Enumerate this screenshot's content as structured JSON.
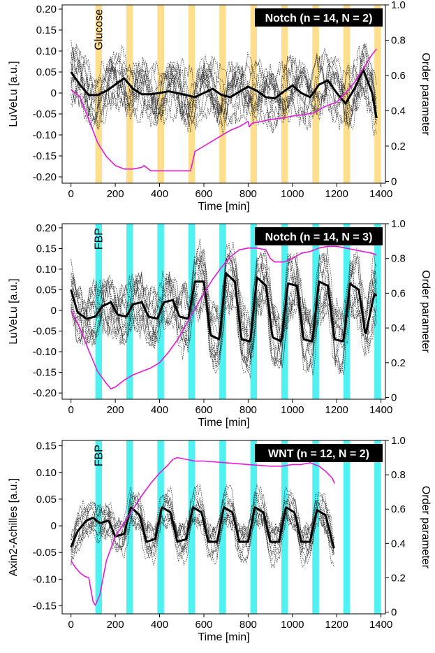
{
  "figure": {
    "panels": [
      {
        "badge": "Notch (n = 14, N = 2)",
        "pulse_label": "Glucose",
        "pulse_color": "#FFD97A"
      },
      {
        "badge": "Notch (n = 14, N = 3)",
        "pulse_label": "FBP",
        "pulse_color": "#3CF0F0"
      },
      {
        "badge": "WNT (n = 12, N = 2)",
        "pulse_label": "FBP",
        "pulse_color": "#3CF0F0"
      }
    ]
  },
  "chart_data": [
    {
      "type": "line",
      "title": "Notch (n = 14, N = 2)",
      "xlabel": "Time [min]",
      "ylabel": "LuVeLu [a.u.]",
      "y2label": "Order parameter",
      "xlim": [
        -40,
        1420
      ],
      "ylim": [
        -0.215,
        0.21
      ],
      "y2lim": [
        -0.01,
        1.0
      ],
      "xticks": [
        0,
        200,
        400,
        600,
        800,
        1000,
        1200,
        1400
      ],
      "yticks": [
        -0.2,
        -0.15,
        -0.1,
        -0.05,
        0,
        0.05,
        0.1,
        0.15,
        0.2
      ],
      "ytick_labels": [
        "-0.20",
        "-0.15",
        "-0.10",
        "-0.05",
        "0",
        "0.05",
        "0.10",
        "0.15",
        "0.20"
      ],
      "y2ticks": [
        0,
        0.2,
        0.4,
        0.6,
        0.8,
        1.0
      ],
      "y2tick_labels": [
        "0",
        "0.2",
        "0.4",
        "0.6",
        "0.8",
        "1.0"
      ],
      "pulses": [
        [
          110,
          140
        ],
        [
          250,
          280
        ],
        [
          390,
          420
        ],
        [
          530,
          560
        ],
        [
          670,
          700
        ],
        [
          810,
          840
        ],
        [
          950,
          980
        ],
        [
          1090,
          1120
        ],
        [
          1230,
          1260
        ],
        [
          1370,
          1400
        ]
      ],
      "pulse_annotation": "Glucose",
      "series": [
        {
          "name": "mean",
          "color": "#000000",
          "x": [
            0,
            40,
            80,
            120,
            160,
            200,
            240,
            280,
            320,
            360,
            400,
            440,
            480,
            520,
            560,
            600,
            640,
            680,
            720,
            760,
            800,
            840,
            880,
            920,
            960,
            1000,
            1040,
            1080,
            1120,
            1160,
            1200,
            1240,
            1280,
            1320,
            1360,
            1380
          ],
          "y": [
            0.05,
            0.02,
            -0.005,
            -0.005,
            0.005,
            0.02,
            0.035,
            0.01,
            -0.003,
            -0.003,
            0.0,
            0.004,
            0.0,
            -0.005,
            -0.01,
            0.0,
            0.01,
            -0.005,
            -0.01,
            0.003,
            0.015,
            0.005,
            -0.01,
            -0.013,
            0.003,
            0.018,
            0.0,
            -0.01,
            0.02,
            0.03,
            0.0,
            -0.025,
            0.01,
            0.055,
            0.0,
            -0.06
          ]
        },
        {
          "name": "order parameter",
          "color": "#E619D7",
          "axis": "right",
          "x": [
            0,
            40,
            80,
            120,
            160,
            200,
            240,
            280,
            320,
            330,
            360,
            400,
            440,
            480,
            520,
            540,
            560,
            600,
            640,
            680,
            720,
            760,
            800,
            805,
            820,
            860,
            900,
            960,
            1000,
            1060,
            1100,
            1140,
            1200,
            1240,
            1280,
            1320,
            1360,
            1380
          ],
          "y": [
            0.52,
            0.48,
            0.35,
            0.22,
            0.14,
            0.09,
            0.07,
            0.07,
            0.08,
            0.09,
            0.06,
            0.06,
            0.06,
            0.06,
            0.06,
            0.06,
            0.17,
            0.2,
            0.23,
            0.26,
            0.29,
            0.31,
            0.34,
            0.31,
            0.33,
            0.34,
            0.35,
            0.36,
            0.37,
            0.38,
            0.39,
            0.42,
            0.45,
            0.5,
            0.56,
            0.64,
            0.72,
            0.75
          ]
        }
      ]
    },
    {
      "type": "line",
      "title": "Notch (n = 14, N = 3)",
      "xlabel": "Time [min]",
      "ylabel": "LuVeLu [a.u.]",
      "y2label": "Order parameter",
      "xlim": [
        -40,
        1420
      ],
      "ylim": [
        -0.215,
        0.21
      ],
      "y2lim": [
        -0.01,
        1.0
      ],
      "xticks": [
        0,
        200,
        400,
        600,
        800,
        1000,
        1200,
        1400
      ],
      "yticks": [
        -0.2,
        -0.15,
        -0.1,
        -0.05,
        0,
        0.05,
        0.1,
        0.15,
        0.2
      ],
      "ytick_labels": [
        "-0.20",
        "-0.15",
        "-0.10",
        "-0.05",
        "0",
        "0.05",
        "0.10",
        "0.15",
        "0.20"
      ],
      "y2ticks": [
        0,
        0.2,
        0.4,
        0.6,
        0.8,
        1.0
      ],
      "y2tick_labels": [
        "0",
        "0.2",
        "0.4",
        "0.6",
        "0.8",
        "1.0"
      ],
      "pulses": [
        [
          110,
          140
        ],
        [
          250,
          280
        ],
        [
          390,
          420
        ],
        [
          530,
          560
        ],
        [
          670,
          700
        ],
        [
          810,
          840
        ],
        [
          950,
          980
        ],
        [
          1090,
          1120
        ],
        [
          1230,
          1260
        ],
        [
          1370,
          1400
        ]
      ],
      "pulse_annotation": "FBP",
      "series": [
        {
          "name": "mean",
          "color": "#000000",
          "x": [
            0,
            30,
            70,
            110,
            140,
            180,
            210,
            250,
            280,
            320,
            350,
            390,
            420,
            460,
            490,
            530,
            560,
            600,
            630,
            670,
            700,
            740,
            770,
            810,
            840,
            880,
            910,
            950,
            980,
            1020,
            1050,
            1090,
            1120,
            1160,
            1190,
            1230,
            1260,
            1300,
            1330,
            1370,
            1380
          ],
          "y": [
            0.05,
            -0.005,
            -0.02,
            -0.015,
            0.01,
            0.02,
            -0.01,
            -0.015,
            0.015,
            0.02,
            -0.015,
            -0.02,
            0.02,
            0.025,
            -0.015,
            -0.02,
            0.07,
            0.07,
            -0.06,
            -0.07,
            0.09,
            0.07,
            -0.07,
            -0.075,
            0.08,
            0.06,
            -0.065,
            -0.075,
            0.065,
            0.06,
            -0.07,
            -0.075,
            0.07,
            0.06,
            -0.07,
            -0.075,
            0.065,
            0.05,
            -0.06,
            0.04,
            0.035
          ]
        },
        {
          "name": "order parameter",
          "color": "#E619D7",
          "axis": "right",
          "x": [
            0,
            40,
            80,
            120,
            160,
            180,
            200,
            240,
            280,
            320,
            360,
            400,
            440,
            480,
            520,
            560,
            600,
            640,
            680,
            720,
            760,
            800,
            840,
            880,
            900,
            920,
            960,
            1000,
            1040,
            1080,
            1120,
            1160,
            1200,
            1240,
            1280,
            1320,
            1360,
            1380
          ],
          "y": [
            0.5,
            0.4,
            0.27,
            0.15,
            0.08,
            0.05,
            0.06,
            0.1,
            0.13,
            0.15,
            0.17,
            0.2,
            0.26,
            0.33,
            0.42,
            0.51,
            0.6,
            0.68,
            0.75,
            0.81,
            0.85,
            0.86,
            0.86,
            0.85,
            0.8,
            0.78,
            0.78,
            0.8,
            0.83,
            0.84,
            0.86,
            0.87,
            0.87,
            0.86,
            0.85,
            0.84,
            0.83,
            0.82
          ]
        }
      ]
    },
    {
      "type": "line",
      "title": "WNT (n = 12, N = 2)",
      "xlabel": "Time [min]",
      "ylabel": "Axin2-Achilles [a.u.]",
      "y2label": "Order parameter",
      "xlim": [
        -40,
        1420
      ],
      "ylim": [
        -0.165,
        0.16
      ],
      "y2lim": [
        -0.01,
        1.0
      ],
      "xticks": [
        0,
        200,
        400,
        600,
        800,
        1000,
        1200,
        1400
      ],
      "yticks": [
        -0.15,
        -0.1,
        -0.05,
        0,
        0.05,
        0.1,
        0.15
      ],
      "ytick_labels": [
        "-0.15",
        "-0.10",
        "-0.05",
        "0",
        "0.05",
        "0.10",
        "0.15"
      ],
      "y2ticks": [
        0,
        0.2,
        0.4,
        0.6,
        0.8,
        1.0
      ],
      "y2tick_labels": [
        "0",
        "0.2",
        "0.4",
        "0.6",
        "0.8",
        "1.0"
      ],
      "pulses": [
        [
          110,
          140
        ],
        [
          250,
          280
        ],
        [
          390,
          420
        ],
        [
          530,
          560
        ],
        [
          670,
          700
        ],
        [
          810,
          840
        ],
        [
          950,
          980
        ],
        [
          1090,
          1120
        ],
        [
          1230,
          1260
        ],
        [
          1370,
          1400
        ]
      ],
      "pulse_annotation": "FBP",
      "series": [
        {
          "name": "mean",
          "color": "#000000",
          "x": [
            0,
            30,
            70,
            100,
            130,
            170,
            200,
            240,
            270,
            310,
            340,
            380,
            410,
            450,
            480,
            520,
            550,
            590,
            620,
            660,
            690,
            730,
            760,
            800,
            830,
            870,
            900,
            940,
            970,
            1010,
            1040,
            1080,
            1110,
            1150,
            1180,
            1190
          ],
          "y": [
            -0.04,
            -0.01,
            0.01,
            0.015,
            0.005,
            0.01,
            -0.02,
            -0.015,
            0.035,
            0.02,
            -0.03,
            -0.025,
            0.035,
            0.025,
            -0.03,
            -0.025,
            0.035,
            0.025,
            -0.03,
            -0.03,
            0.035,
            0.025,
            -0.03,
            -0.03,
            0.035,
            0.025,
            -0.03,
            -0.03,
            0.035,
            0.025,
            -0.03,
            -0.03,
            0.03,
            0.02,
            -0.03,
            -0.045
          ]
        },
        {
          "name": "order parameter",
          "color": "#E619D7",
          "axis": "right",
          "x": [
            0,
            20,
            40,
            60,
            80,
            100,
            110,
            130,
            160,
            200,
            240,
            280,
            320,
            360,
            400,
            440,
            460,
            480,
            520,
            560,
            600,
            700,
            800,
            900,
            950,
            1000,
            1040,
            1080,
            1100,
            1120,
            1150,
            1180,
            1190
          ],
          "y": [
            0.3,
            0.26,
            0.23,
            0.21,
            0.2,
            0.06,
            0.04,
            0.1,
            0.3,
            0.44,
            0.52,
            0.6,
            0.68,
            0.75,
            0.81,
            0.86,
            0.89,
            0.9,
            0.89,
            0.88,
            0.88,
            0.87,
            0.86,
            0.85,
            0.85,
            0.86,
            0.86,
            0.87,
            0.86,
            0.85,
            0.82,
            0.78,
            0.75
          ]
        }
      ]
    }
  ]
}
